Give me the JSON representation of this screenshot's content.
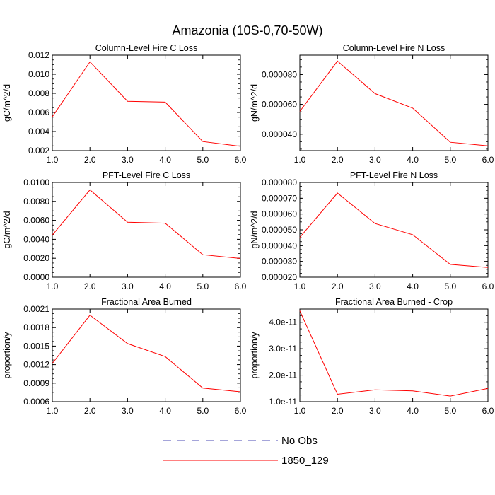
{
  "title": "Amazonia (10S-0,70-50W)",
  "chart_data": [
    {
      "type": "line",
      "title": "Column-Level Fire C Loss",
      "ylabel": "gC/m^2/d",
      "x": [
        1.0,
        2.0,
        3.0,
        4.0,
        5.0,
        6.0
      ],
      "xlim": [
        1.0,
        6.0
      ],
      "xticks": [
        "1.0",
        "2.0",
        "3.0",
        "4.0",
        "5.0",
        "6.0"
      ],
      "ylim": [
        0.002,
        0.012
      ],
      "yticks": [
        {
          "v": 0.002,
          "label": "0.002"
        },
        {
          "v": 0.004,
          "label": "0.004"
        },
        {
          "v": 0.006,
          "label": "0.006"
        },
        {
          "v": 0.008,
          "label": "0.008"
        },
        {
          "v": 0.01,
          "label": "0.010"
        },
        {
          "v": 0.012,
          "label": "0.012"
        }
      ],
      "series": [
        {
          "name": "1850_129",
          "color": "#ff0000",
          "values": [
            0.00555,
            0.0113,
            0.00717,
            0.00708,
            0.00295,
            0.00245
          ]
        }
      ]
    },
    {
      "type": "line",
      "title": "Column-Level Fire N Loss",
      "ylabel": "gN/m^2/d",
      "x": [
        1.0,
        2.0,
        3.0,
        4.0,
        5.0,
        6.0
      ],
      "xlim": [
        1.0,
        6.0
      ],
      "xticks": [
        "1.0",
        "2.0",
        "3.0",
        "4.0",
        "5.0",
        "6.0"
      ],
      "ylim": [
        2.9e-05,
        9.3e-05
      ],
      "yticks": [
        {
          "v": 4e-05,
          "label": "0.000040"
        },
        {
          "v": 6e-05,
          "label": "0.000060"
        },
        {
          "v": 8e-05,
          "label": "0.000080"
        }
      ],
      "series": [
        {
          "name": "1850_129",
          "color": "#ff0000",
          "values": [
            5.53e-05,
            8.9e-05,
            6.72e-05,
            5.75e-05,
            3.46e-05,
            3.22e-05
          ]
        }
      ]
    },
    {
      "type": "line",
      "title": "PFT-Level Fire C Loss",
      "ylabel": "gC/m^2/d",
      "x": [
        1.0,
        2.0,
        3.0,
        4.0,
        5.0,
        6.0
      ],
      "xlim": [
        1.0,
        6.0
      ],
      "xticks": [
        "1.0",
        "2.0",
        "3.0",
        "4.0",
        "5.0",
        "6.0"
      ],
      "ylim": [
        0.0,
        0.01
      ],
      "yticks": [
        {
          "v": 0.0,
          "label": "0.0000"
        },
        {
          "v": 0.002,
          "label": "0.0020"
        },
        {
          "v": 0.004,
          "label": "0.0040"
        },
        {
          "v": 0.006,
          "label": "0.0060"
        },
        {
          "v": 0.008,
          "label": "0.0080"
        },
        {
          "v": 0.01,
          "label": "0.0100"
        }
      ],
      "series": [
        {
          "name": "1850_129",
          "color": "#ff0000",
          "values": [
            0.00445,
            0.00922,
            0.0058,
            0.0057,
            0.00237,
            0.00198
          ]
        }
      ]
    },
    {
      "type": "line",
      "title": "PFT-Level Fire N Loss",
      "ylabel": "gN/m^2/d",
      "x": [
        1.0,
        2.0,
        3.0,
        4.0,
        5.0,
        6.0
      ],
      "xlim": [
        1.0,
        6.0
      ],
      "xticks": [
        "1.0",
        "2.0",
        "3.0",
        "4.0",
        "5.0",
        "6.0"
      ],
      "ylim": [
        2e-05,
        8e-05
      ],
      "yticks": [
        {
          "v": 2e-05,
          "label": "0.000020"
        },
        {
          "v": 3e-05,
          "label": "0.000030"
        },
        {
          "v": 4e-05,
          "label": "0.000040"
        },
        {
          "v": 5e-05,
          "label": "0.000050"
        },
        {
          "v": 6e-05,
          "label": "0.000060"
        },
        {
          "v": 7e-05,
          "label": "0.000070"
        },
        {
          "v": 8e-05,
          "label": "0.000080"
        }
      ],
      "series": [
        {
          "name": "1850_129",
          "color": "#ff0000",
          "values": [
            4.52e-05,
            7.33e-05,
            5.4e-05,
            4.69e-05,
            2.81e-05,
            2.62e-05
          ]
        }
      ]
    },
    {
      "type": "line",
      "title": "Fractional Area Burned",
      "ylabel": "proportion/y",
      "x": [
        1.0,
        2.0,
        3.0,
        4.0,
        5.0,
        6.0
      ],
      "xlim": [
        1.0,
        6.0
      ],
      "xticks": [
        "1.0",
        "2.0",
        "3.0",
        "4.0",
        "5.0",
        "6.0"
      ],
      "ylim": [
        0.0006,
        0.0021
      ],
      "yticks": [
        {
          "v": 0.0006,
          "label": "0.0006"
        },
        {
          "v": 0.0009,
          "label": "0.0009"
        },
        {
          "v": 0.0012,
          "label": "0.0012"
        },
        {
          "v": 0.0015,
          "label": "0.0015"
        },
        {
          "v": 0.0018,
          "label": "0.0018"
        },
        {
          "v": 0.0021,
          "label": "0.0021"
        }
      ],
      "series": [
        {
          "name": "1850_129",
          "color": "#ff0000",
          "values": [
            0.00122,
            0.002,
            0.00154,
            0.00133,
            0.00082,
            0.00076
          ]
        }
      ]
    },
    {
      "type": "line",
      "title": "Fractional Area Burned - Crop",
      "ylabel": "proportion/y",
      "x": [
        1.0,
        2.0,
        3.0,
        4.0,
        5.0,
        6.0
      ],
      "xlim": [
        1.0,
        6.0
      ],
      "xticks": [
        "1.0",
        "2.0",
        "3.0",
        "4.0",
        "5.0",
        "6.0"
      ],
      "ylim": [
        1e-11,
        4.5e-11
      ],
      "yticks": [
        {
          "v": 1e-11,
          "label": "1.0e-11"
        },
        {
          "v": 2e-11,
          "label": "2.0e-11"
        },
        {
          "v": 3e-11,
          "label": "3.0e-11"
        },
        {
          "v": 4e-11,
          "label": "4.0e-11"
        }
      ],
      "series": [
        {
          "name": "1850_129",
          "color": "#ff0000",
          "values": [
            4.43e-11,
            1.28e-11,
            1.45e-11,
            1.41e-11,
            1.21e-11,
            1.5e-11
          ]
        }
      ]
    }
  ],
  "legend": {
    "placement": "bottom-center",
    "entries": [
      {
        "label": "No Obs",
        "color": "#4b4bb4",
        "style": "dashed"
      },
      {
        "label": "1850_129",
        "color": "#ff0000",
        "style": "solid"
      }
    ]
  }
}
